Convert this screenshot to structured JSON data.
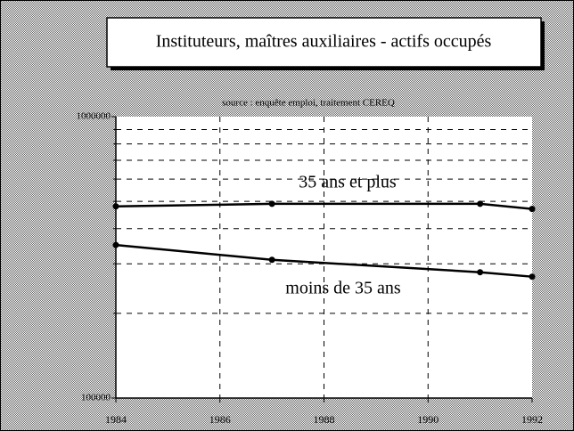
{
  "chart_data": {
    "type": "line",
    "title": "Instituteurs, maîtres auxiliaires - actifs occupés",
    "subtitle": "source : enquête emploi, traitement CEREQ",
    "xlim": [
      1984,
      1992
    ],
    "xticks": [
      1984,
      1986,
      1988,
      1990,
      1992
    ],
    "ylim": [
      100000,
      1000000
    ],
    "yticks": [
      100000,
      1000000
    ],
    "yminor_ticks": [
      200000,
      300000,
      400000,
      500000,
      600000,
      700000,
      800000,
      900000
    ],
    "log_y": true,
    "grid": true,
    "series": [
      {
        "name": "35 ans et plus",
        "color": "#000000",
        "x": [
          1984,
          1987,
          1991,
          1992
        ],
        "values": [
          480000,
          490000,
          490000,
          470000
        ]
      },
      {
        "name": "moins de 35 ans",
        "color": "#000000",
        "x": [
          1984,
          1987,
          1991,
          1992
        ],
        "values": [
          350000,
          310000,
          280000,
          270000
        ]
      }
    ]
  }
}
